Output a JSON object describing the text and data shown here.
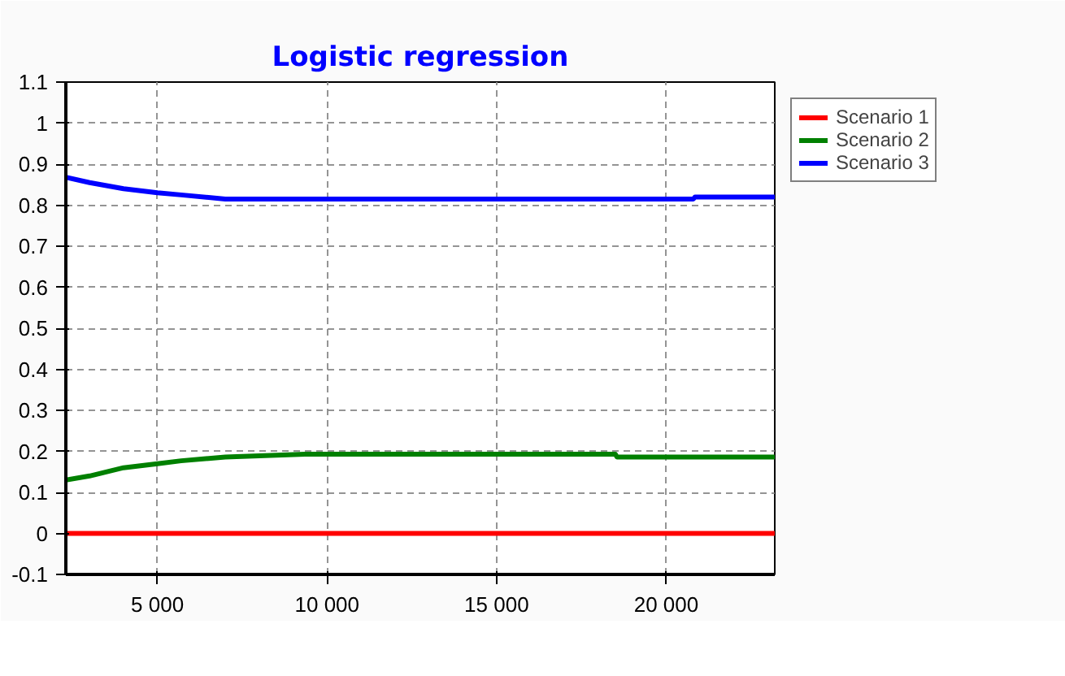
{
  "chart_data": {
    "type": "line",
    "title": "Logistic regression",
    "xlim": [
      2300,
      23200
    ],
    "ylim": [
      -0.1,
      1.1
    ],
    "xticks": [
      {
        "value": 5000,
        "label": "5 000"
      },
      {
        "value": 10000,
        "label": "10 000"
      },
      {
        "value": 15000,
        "label": "15 000"
      },
      {
        "value": 20000,
        "label": "20 000"
      }
    ],
    "yticks": [
      -0.1,
      0,
      0.1,
      0.2,
      0.3,
      0.4,
      0.5,
      0.6,
      0.7,
      0.8,
      0.9,
      1,
      1.1
    ],
    "grid": true,
    "legend": "top right",
    "line_style": "solid",
    "series": [
      {
        "name": "Scenario 1",
        "color": "#ff0000",
        "x": [
          2300,
          23200
        ],
        "values": [
          0,
          0
        ]
      },
      {
        "name": "Scenario 2",
        "color": "#008000",
        "x": [
          2300,
          3000,
          4000,
          5000,
          5700,
          7000,
          9350,
          18500,
          18550,
          23200
        ],
        "values": [
          0.13,
          0.14,
          0.16,
          0.17,
          0.177,
          0.186,
          0.193,
          0.193,
          0.186,
          0.186
        ]
      },
      {
        "name": "Scenario 3",
        "color": "#0000ff",
        "x": [
          2300,
          3000,
          4000,
          5000,
          5700,
          7000,
          20800,
          20850,
          23200
        ],
        "values": [
          0.868,
          0.855,
          0.84,
          0.83,
          0.825,
          0.815,
          0.815,
          0.82,
          0.82
        ]
      }
    ]
  }
}
